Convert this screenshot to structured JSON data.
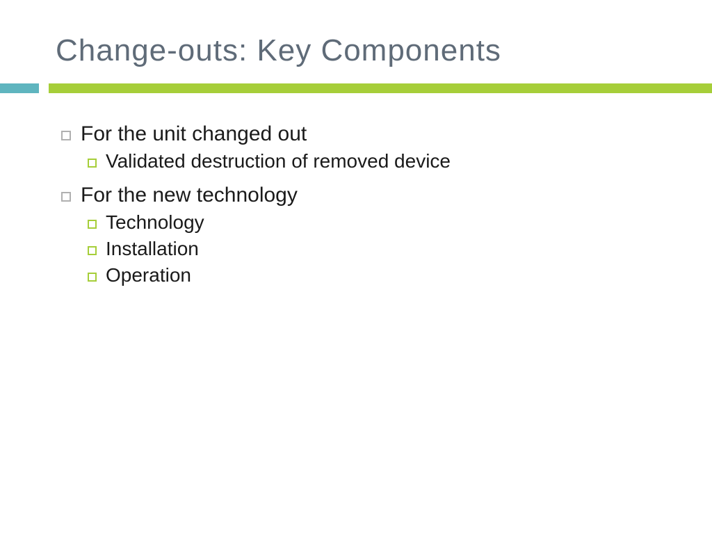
{
  "slide": {
    "title": "Change-outs: Key Components",
    "title_color": "#5f6b78",
    "title_fontsize": 44,
    "divider": {
      "teal_color": "#5fb5bf",
      "teal_width": 56,
      "green_color": "#a6ce39",
      "height": 14,
      "gap": 14
    },
    "body_fontsize_level1": 30,
    "body_fontsize_level2": 28,
    "body_color": "#1a1a1a",
    "bullet_level1_color": "#b0b0b0",
    "bullet_level2_color": "#a6ce39",
    "background_color": "#ffffff",
    "items": [
      {
        "text": "For the unit changed out",
        "children": [
          {
            "text": "Validated destruction of removed device"
          }
        ]
      },
      {
        "text": "For the new technology",
        "children": [
          {
            "text": "Technology"
          },
          {
            "text": "Installation"
          },
          {
            "text": "Operation"
          }
        ]
      }
    ]
  }
}
